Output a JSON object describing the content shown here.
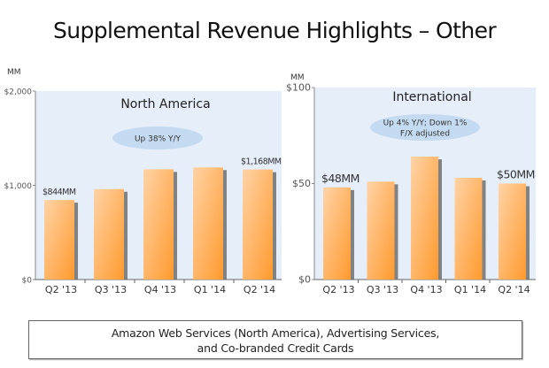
{
  "page": {
    "title": "Supplemental Revenue Highlights – Other",
    "footer_lines": [
      "Amazon Web Services (North America), Advertising Services,",
      "and Co-branded Credit Cards"
    ]
  },
  "colors": {
    "plot_bg": "#e6eefa",
    "bar_light": "#ffd3a6",
    "bar_dark": "#ff9a2e",
    "bar_shadow": "#6e6e6e",
    "callout": "#c4daf0"
  },
  "chart_data": [
    {
      "type": "bar",
      "title": "North America",
      "unit_label": "MM",
      "categories": [
        "Q2 '13",
        "Q3 '13",
        "Q4 '13",
        "Q1 '14",
        "Q2 '14"
      ],
      "values": [
        844,
        960,
        1170,
        1190,
        1168
      ],
      "ylim": [
        0,
        2000
      ],
      "yticks": [
        0,
        1000,
        2000
      ],
      "ytick_labels": [
        "$0",
        "$1,000",
        "$2,000"
      ],
      "data_labels": [
        {
          "index": 0,
          "text": "$844MM"
        },
        {
          "index": 4,
          "text": "$1,168MM"
        }
      ],
      "annotation": [
        "Up 38% Y/Y"
      ],
      "grid": false
    },
    {
      "type": "bar",
      "title": "International",
      "unit_label": "MM",
      "categories": [
        "Q2 '13",
        "Q3 '13",
        "Q4 '13",
        "Q1 '14",
        "Q2 '14"
      ],
      "values": [
        48,
        51,
        64,
        53,
        50
      ],
      "ylim": [
        0,
        100
      ],
      "yticks": [
        0,
        50,
        100
      ],
      "ytick_labels": [
        "$0",
        "$50",
        "$100"
      ],
      "data_labels": [
        {
          "index": 0,
          "text": "$48MM"
        },
        {
          "index": 4,
          "text": "$50MM"
        }
      ],
      "annotation": [
        "Up 4% Y/Y; Down 1%",
        "F/X adjusted"
      ],
      "grid": false
    }
  ]
}
